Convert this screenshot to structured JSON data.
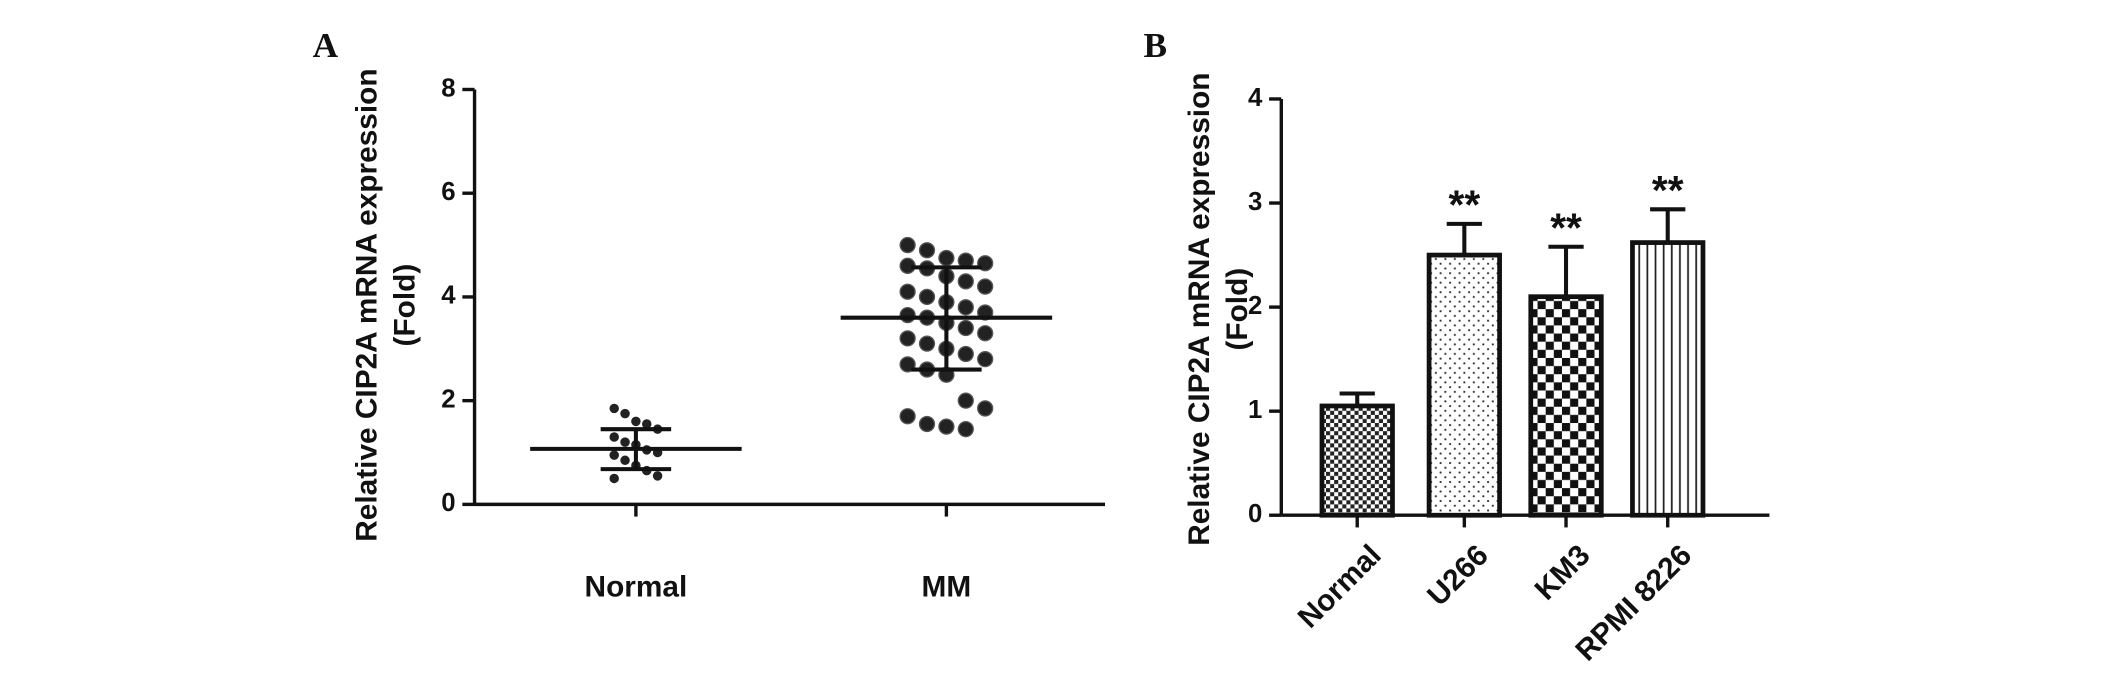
{
  "chart_data": [
    {
      "type": "dot",
      "panel": "A",
      "ylabel": [
        "Relative CIP2A mRNA expression",
        "(Fold)"
      ],
      "categories": [
        "Normal",
        "MM"
      ],
      "points": [
        [
          1.85,
          1.75,
          1.6,
          1.55,
          1.45,
          1.3,
          1.2,
          1.15,
          1.05,
          1.0,
          0.95,
          0.85,
          0.75,
          0.65,
          0.55,
          0.5
        ],
        [
          5.0,
          4.9,
          4.75,
          4.7,
          4.65,
          4.6,
          4.55,
          4.4,
          4.3,
          4.2,
          4.1,
          4.0,
          3.9,
          3.8,
          3.7,
          3.65,
          3.6,
          3.5,
          3.4,
          3.3,
          3.2,
          3.1,
          3.0,
          2.9,
          2.8,
          2.7,
          2.6,
          2.5,
          2.0,
          1.85,
          1.7,
          1.55,
          1.5,
          1.45
        ]
      ],
      "mean": [
        1.07,
        3.6
      ],
      "sd_range": [
        [
          0.68,
          1.45
        ],
        [
          2.6,
          4.57
        ]
      ],
      "color": "#222222",
      "ylim": [
        0,
        8
      ],
      "yticks": [
        0,
        2,
        4,
        6,
        8
      ]
    },
    {
      "type": "bar",
      "panel": "B",
      "ylabel": [
        "Relative CIP2A mRNA expression",
        "(Fold)"
      ],
      "categories": [
        "Normal",
        "U266",
        "KM3",
        "RPMI 8226"
      ],
      "values": [
        1.05,
        2.5,
        2.1,
        2.62
      ],
      "errors": [
        0.12,
        0.3,
        0.48,
        0.32
      ],
      "annotations": [
        null,
        "**",
        "**",
        "**"
      ],
      "patterns": [
        "grid",
        "dots",
        "checker",
        "vlines"
      ],
      "ylim": [
        0,
        4
      ],
      "yticks": [
        0,
        1,
        2,
        3,
        4
      ]
    }
  ]
}
